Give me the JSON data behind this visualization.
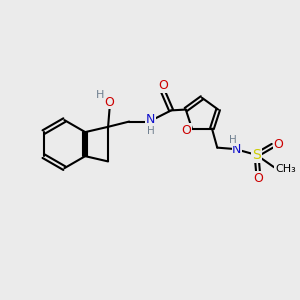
{
  "bg_color": "#ebebeb",
  "atom_colors": {
    "C": "#000000",
    "N": "#1010cc",
    "O": "#cc0000",
    "S": "#cccc00",
    "H": "#708090"
  }
}
